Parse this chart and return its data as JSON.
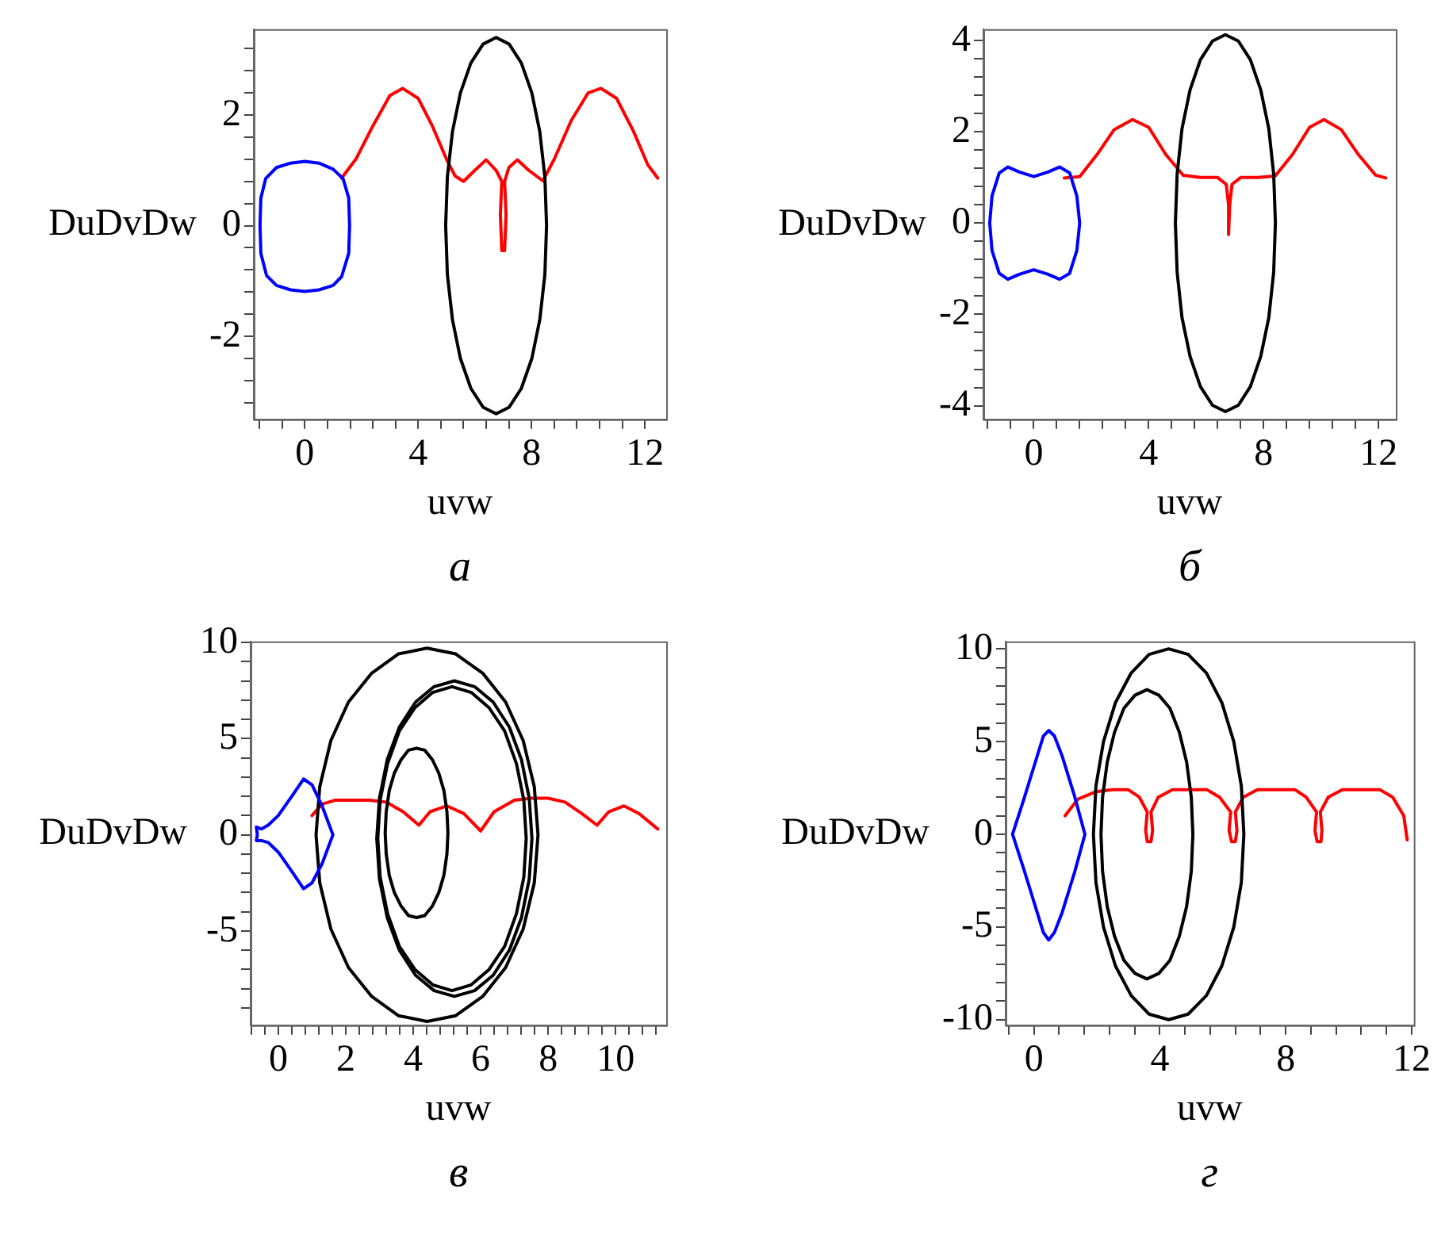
{
  "chart_data": [
    {
      "type": "line",
      "title": "а",
      "xlabel": "uvw",
      "ylabel": "DuDvDw",
      "xlim": [
        -1.8,
        12.75
      ],
      "ylim": [
        -3.5,
        3.55
      ],
      "xticks": [
        {
          "value": -1.6,
          "label": null
        },
        {
          "value": -0.8,
          "label": null
        },
        0,
        {
          "value": 0.8,
          "label": null
        },
        {
          "value": 1.6,
          "label": null
        },
        {
          "value": 2.4,
          "label": null
        },
        {
          "value": 3.2,
          "label": null
        },
        4,
        {
          "value": 4.8,
          "label": null
        },
        {
          "value": 5.6,
          "label": null
        },
        {
          "value": 6.4,
          "label": null
        },
        {
          "value": 7.2,
          "label": null
        },
        8,
        {
          "value": 8.8,
          "label": null
        },
        {
          "value": 9.6,
          "label": null
        },
        {
          "value": 10.4,
          "label": null
        },
        {
          "value": 11.2,
          "label": null
        },
        12
      ],
      "yticks": [
        {
          "value": -3.2,
          "label": null
        },
        {
          "value": -2.8,
          "label": null
        },
        {
          "value": -2.4,
          "label": null
        },
        -2,
        {
          "value": -1.6,
          "label": null
        },
        {
          "value": -1.2,
          "label": null
        },
        {
          "value": -0.8,
          "label": null
        },
        {
          "value": -0.4,
          "label": null
        },
        0,
        {
          "value": 0.4,
          "label": null
        },
        {
          "value": 0.8,
          "label": null
        },
        {
          "value": 1.2,
          "label": null
        },
        {
          "value": 1.6,
          "label": null
        },
        2,
        {
          "value": 2.4,
          "label": null
        },
        {
          "value": 2.8,
          "label": null
        },
        {
          "value": 3.2,
          "label": null
        }
      ],
      "series": [
        {
          "color": "#0000ff",
          "x": [
            -1.58,
            -1.55,
            -1.38,
            -1.0,
            -0.5,
            0,
            0.5,
            1.0,
            1.35,
            1.55,
            1.58,
            1.55,
            1.3,
            1.0,
            0.5,
            0,
            -0.5,
            -1.0,
            -1.35,
            -1.55,
            -1.58,
            -1.55
          ],
          "values": [
            0,
            0.5,
            0.85,
            1.05,
            1.13,
            1.16,
            1.13,
            1.02,
            0.85,
            0.5,
            0,
            -0.5,
            -0.92,
            -1.08,
            -1.16,
            -1.19,
            -1.16,
            -1.08,
            -0.9,
            -0.5,
            0,
            0.5
          ]
        },
        {
          "color": "#000000",
          "x": [
            8.53,
            8.47,
            8.29,
            8.01,
            7.64,
            7.21,
            6.75,
            6.29,
            5.86,
            5.49,
            5.21,
            5.03,
            4.97,
            5.03,
            5.21,
            5.49,
            5.86,
            6.29,
            6.75,
            7.21,
            7.64,
            8.01,
            8.29,
            8.47,
            8.53,
            8.47
          ],
          "values": [
            0,
            0.88,
            1.7,
            2.4,
            2.94,
            3.28,
            3.4,
            3.28,
            2.94,
            2.4,
            1.7,
            0.88,
            0,
            -0.88,
            -1.7,
            -2.4,
            -2.94,
            -3.28,
            -3.4,
            -3.28,
            -2.94,
            -2.4,
            -1.7,
            -0.88,
            0,
            0.88
          ]
        },
        {
          "color": "#ff0000",
          "x": [
            1.3,
            1.8,
            2.4,
            3.0,
            3.45,
            4.0,
            4.5,
            5.0,
            5.3,
            5.6,
            6.0,
            6.4,
            6.75,
            6.95,
            6.9,
            6.95,
            7.05,
            7.1,
            7.05,
            7.2,
            7.5,
            7.9,
            8.4,
            8.8,
            9.4,
            10.0,
            10.45,
            11.0,
            11.6,
            12.1,
            12.45
          ],
          "values": [
            0.86,
            1.2,
            1.8,
            2.35,
            2.48,
            2.3,
            1.8,
            1.2,
            0.9,
            0.8,
            1.0,
            1.19,
            1.0,
            0.8,
            0.2,
            -0.45,
            -0.45,
            0.2,
            0.8,
            1.05,
            1.19,
            1.0,
            0.81,
            1.2,
            1.9,
            2.4,
            2.48,
            2.3,
            1.7,
            1.1,
            0.86
          ]
        }
      ]
    },
    {
      "type": "line",
      "title": "б",
      "xlabel": "uvw",
      "ylabel": "DuDvDw",
      "xlim": [
        -1.75,
        12.6
      ],
      "ylim": [
        -4.3,
        4.25
      ],
      "xticks": [
        {
          "value": -1.6,
          "label": null
        },
        {
          "value": -0.8,
          "label": null
        },
        0,
        {
          "value": 0.8,
          "label": null
        },
        {
          "value": 1.6,
          "label": null
        },
        {
          "value": 2.4,
          "label": null
        },
        {
          "value": 3.2,
          "label": null
        },
        4,
        {
          "value": 4.8,
          "label": null
        },
        {
          "value": 5.6,
          "label": null
        },
        {
          "value": 6.4,
          "label": null
        },
        {
          "value": 7.2,
          "label": null
        },
        8,
        {
          "value": 8.8,
          "label": null
        },
        {
          "value": 9.6,
          "label": null
        },
        {
          "value": 10.4,
          "label": null
        },
        {
          "value": 11.2,
          "label": null
        },
        12
      ],
      "yticks": [
        -4,
        {
          "value": -3.6,
          "label": null
        },
        {
          "value": -3.2,
          "label": null
        },
        {
          "value": -2.8,
          "label": null
        },
        {
          "value": -2.4,
          "label": null
        },
        -2,
        {
          "value": -1.6,
          "label": null
        },
        {
          "value": -1.2,
          "label": null
        },
        {
          "value": -0.8,
          "label": null
        },
        {
          "value": -0.4,
          "label": null
        },
        0,
        {
          "value": 0.4,
          "label": null
        },
        {
          "value": 0.8,
          "label": null
        },
        {
          "value": 1.2,
          "label": null
        },
        {
          "value": 1.6,
          "label": null
        },
        2,
        {
          "value": 2.4,
          "label": null
        },
        {
          "value": 2.8,
          "label": null
        },
        {
          "value": 3.2,
          "label": null
        },
        {
          "value": 3.6,
          "label": null
        },
        4
      ],
      "series": [
        {
          "color": "#0000ff",
          "x": [
            -1.53,
            -1.45,
            -1.2,
            -0.9,
            -0.5,
            0,
            0.5,
            0.9,
            1.25,
            1.5,
            1.6,
            1.5,
            1.25,
            0.9,
            0.5,
            0,
            -0.5,
            -0.9,
            -1.2,
            -1.45,
            -1.53,
            -1.45
          ],
          "values": [
            0,
            0.6,
            1.1,
            1.23,
            1.12,
            1.02,
            1.12,
            1.23,
            1.1,
            0.6,
            0,
            -0.6,
            -1.1,
            -1.23,
            -1.12,
            -1.02,
            -1.12,
            -1.23,
            -1.1,
            -0.6,
            0,
            0.6
          ]
        },
        {
          "color": "#000000",
          "x": [
            8.41,
            8.35,
            8.18,
            7.9,
            7.54,
            7.12,
            6.67,
            6.22,
            5.8,
            5.44,
            5.16,
            4.99,
            4.93,
            4.99,
            5.16,
            5.44,
            5.8,
            6.22,
            6.67,
            7.12,
            7.54,
            7.9,
            8.18,
            8.35,
            8.41,
            8.35
          ],
          "values": [
            0,
            1.07,
            2.07,
            2.92,
            3.58,
            3.99,
            4.13,
            3.99,
            3.58,
            2.92,
            2.07,
            1.07,
            0,
            -1.07,
            -2.07,
            -2.92,
            -3.58,
            -3.99,
            -4.13,
            -3.99,
            -3.58,
            -2.92,
            -2.07,
            -1.07,
            0,
            1.07
          ]
        },
        {
          "color": "#ff0000",
          "x": [
            1.06,
            1.6,
            2.2,
            2.8,
            3.44,
            4.0,
            4.6,
            5.2,
            5.8,
            6.4,
            6.7,
            6.78,
            6.78,
            6.82,
            6.9,
            7.2,
            7.8,
            8.4,
            9.0,
            9.6,
            10.1,
            10.7,
            11.3,
            11.9,
            12.25
          ],
          "values": [
            0.99,
            1.02,
            1.5,
            2.05,
            2.27,
            2.1,
            1.5,
            1.05,
            1.0,
            1.0,
            0.85,
            0.4,
            -0.25,
            0.4,
            0.85,
            1.0,
            1.0,
            1.03,
            1.5,
            2.1,
            2.27,
            2.05,
            1.5,
            1.05,
            0.99
          ]
        }
      ]
    },
    {
      "type": "line",
      "title": "в",
      "xlabel": "uvw",
      "ylabel": "DuDvDw",
      "xlim": [
        -0.82,
        11.5
      ],
      "ylim": [
        -9.9,
        10.05
      ],
      "xticks": [
        {
          "value": -0.8,
          "label": null
        },
        {
          "value": -0.4,
          "label": null
        },
        0,
        {
          "value": 0.4,
          "label": null
        },
        {
          "value": 0.8,
          "label": null
        },
        {
          "value": 1.2,
          "label": null
        },
        {
          "value": 1.6,
          "label": null
        },
        2,
        {
          "value": 2.4,
          "label": null
        },
        {
          "value": 2.8,
          "label": null
        },
        {
          "value": 3.2,
          "label": null
        },
        {
          "value": 3.6,
          "label": null
        },
        4,
        {
          "value": 4.4,
          "label": null
        },
        {
          "value": 4.8,
          "label": null
        },
        {
          "value": 5.2,
          "label": null
        },
        {
          "value": 5.6,
          "label": null
        },
        6,
        {
          "value": 6.4,
          "label": null
        },
        {
          "value": 6.8,
          "label": null
        },
        {
          "value": 7.2,
          "label": null
        },
        {
          "value": 7.6,
          "label": null
        },
        8,
        {
          "value": 8.4,
          "label": null
        },
        {
          "value": 8.8,
          "label": null
        },
        {
          "value": 9.2,
          "label": null
        },
        {
          "value": 9.6,
          "label": null
        },
        10,
        {
          "value": 10.4,
          "label": null
        },
        {
          "value": 10.8,
          "label": null
        },
        {
          "value": 11.2,
          "label": null
        }
      ],
      "yticks": [
        {
          "value": -9,
          "label": null
        },
        {
          "value": -8,
          "label": null
        },
        {
          "value": -7,
          "label": null
        },
        {
          "value": -6,
          "label": null
        },
        -5,
        {
          "value": -4,
          "label": null
        },
        {
          "value": -3,
          "label": null
        },
        {
          "value": -2,
          "label": null
        },
        {
          "value": -1,
          "label": null
        },
        0,
        {
          "value": 1,
          "label": null
        },
        {
          "value": 2,
          "label": null
        },
        {
          "value": 3,
          "label": null
        },
        {
          "value": 4,
          "label": null
        },
        5,
        {
          "value": 6,
          "label": null
        },
        {
          "value": 7,
          "label": null
        },
        {
          "value": 8,
          "label": null
        },
        {
          "value": 9,
          "label": null
        },
        10
      ],
      "series": [
        {
          "color": "#0000ff",
          "x": [
            -0.65,
            -0.62,
            -0.65,
            -0.5,
            -0.3,
            0,
            0.4,
            0.75,
            1.0,
            1.3,
            1.62,
            1.3,
            1.0,
            0.75,
            0.4,
            0,
            -0.3,
            -0.5,
            -0.65,
            -0.62
          ],
          "values": [
            0.4,
            0,
            -0.3,
            -0.3,
            -0.4,
            -0.9,
            -1.9,
            -2.8,
            -2.5,
            -1.5,
            0,
            1.5,
            2.6,
            2.9,
            2.0,
            1.0,
            0.5,
            0.3,
            0.4,
            0
          ]
        },
        {
          "color": "#000000",
          "x": [
            7.7,
            7.59,
            7.26,
            6.74,
            6.06,
            5.26,
            4.41,
            3.56,
            2.77,
            2.08,
            1.56,
            1.23,
            1.12,
            1.23,
            1.56,
            2.08,
            2.77,
            3.56,
            4.41,
            5.26,
            6.06,
            6.74,
            7.26,
            7.59,
            7.7,
            7.59
          ],
          "values": [
            0,
            2.5,
            4.9,
            6.9,
            8.4,
            9.4,
            9.7,
            9.4,
            8.4,
            6.9,
            4.9,
            2.5,
            0,
            -2.5,
            -4.9,
            -6.9,
            -8.4,
            -9.4,
            -9.7,
            -9.4,
            -8.4,
            -6.9,
            -4.9,
            -2.5,
            0,
            2.5
          ]
        },
        {
          "color": "#000000",
          "x": [
            7.52,
            7.44,
            7.21,
            6.85,
            6.37,
            5.82,
            5.22,
            4.62,
            4.07,
            3.59,
            3.23,
            3.0,
            2.92,
            3.0,
            3.23,
            3.59,
            4.07,
            4.62,
            5.22,
            5.82,
            6.37,
            6.85,
            7.21,
            7.44,
            7.52,
            7.44
          ],
          "values": [
            -0.2,
            1.9,
            3.9,
            5.6,
            6.9,
            7.7,
            8.0,
            7.7,
            6.9,
            5.6,
            3.9,
            1.9,
            -0.2,
            -2.3,
            -4.3,
            -6.0,
            -7.3,
            -8.1,
            -8.4,
            -8.1,
            -7.3,
            -6.0,
            -4.3,
            -2.3,
            -0.2,
            1.9
          ]
        },
        {
          "color": "#000000",
          "x": [
            7.35,
            7.28,
            7.06,
            6.71,
            6.25,
            5.72,
            5.15,
            4.58,
            4.05,
            3.59,
            3.24,
            3.02,
            2.95,
            3.02,
            3.24,
            3.59,
            4.05,
            4.58,
            5.15,
            5.72,
            6.25,
            6.71,
            7.06,
            7.28,
            7.35,
            7.28
          ],
          "values": [
            -0.2,
            1.8,
            3.7,
            5.4,
            6.6,
            7.4,
            7.7,
            7.4,
            6.6,
            5.4,
            3.7,
            1.8,
            -0.2,
            -2.2,
            -4.1,
            -5.8,
            -7.0,
            -7.8,
            -8.1,
            -7.8,
            -7.0,
            -5.8,
            -4.1,
            -2.2,
            -0.2,
            1.8
          ]
        },
        {
          "color": "#000000",
          "x": [
            5.03,
            5.0,
            4.91,
            4.76,
            4.57,
            4.34,
            4.1,
            3.86,
            3.64,
            3.44,
            3.29,
            3.2,
            3.17,
            3.2,
            3.29,
            3.44,
            3.64,
            3.86,
            4.1,
            4.34,
            4.57,
            4.76,
            4.91,
            5.0,
            5.03,
            5.0
          ],
          "values": [
            0.1,
            1.2,
            2.3,
            3.2,
            3.9,
            4.4,
            4.5,
            4.4,
            3.9,
            3.2,
            2.3,
            1.2,
            0.1,
            -1.0,
            -2.1,
            -3.0,
            -3.7,
            -4.2,
            -4.3,
            -4.2,
            -3.7,
            -3.0,
            -2.1,
            -1.0,
            0.1,
            1.2
          ]
        },
        {
          "color": "#ff0000",
          "x": [
            1.0,
            1.3,
            1.7,
            2.2,
            2.7,
            3.2,
            3.7,
            4.17,
            4.5,
            5.0,
            5.5,
            6.0,
            6.4,
            7.0,
            7.5,
            8.0,
            8.5,
            9.0,
            9.45,
            9.8,
            10.25,
            10.7,
            11.25
          ],
          "values": [
            1.0,
            1.6,
            1.8,
            1.8,
            1.8,
            1.7,
            1.2,
            0.5,
            1.2,
            1.5,
            1.1,
            0.2,
            1.2,
            1.8,
            1.9,
            1.9,
            1.7,
            1.1,
            0.5,
            1.2,
            1.5,
            1.1,
            0.3
          ]
        }
      ]
    },
    {
      "type": "line",
      "title": "г",
      "xlabel": "uvw",
      "ylabel": "DuDvDw",
      "xlim": [
        -0.9,
        12.07
      ],
      "ylim": [
        -10.3,
        10.4
      ],
      "xticks": [
        {
          "value": -0.8,
          "label": null
        },
        0,
        {
          "value": 0.8,
          "label": null
        },
        {
          "value": 1.6,
          "label": null
        },
        {
          "value": 2.4,
          "label": null
        },
        {
          "value": 3.2,
          "label": null
        },
        4,
        {
          "value": 4.8,
          "label": null
        },
        {
          "value": 5.6,
          "label": null
        },
        {
          "value": 6.4,
          "label": null
        },
        {
          "value": 7.2,
          "label": null
        },
        8,
        {
          "value": 8.8,
          "label": null
        },
        {
          "value": 9.6,
          "label": null
        },
        {
          "value": 10.4,
          "label": null
        },
        {
          "value": 11.2,
          "label": null
        },
        12
      ],
      "yticks": [
        -10,
        {
          "value": -9,
          "label": null
        },
        {
          "value": -8,
          "label": null
        },
        {
          "value": -7,
          "label": null
        },
        {
          "value": -6,
          "label": null
        },
        -5,
        {
          "value": -4,
          "label": null
        },
        {
          "value": -3,
          "label": null
        },
        {
          "value": -2,
          "label": null
        },
        {
          "value": -1,
          "label": null
        },
        0,
        {
          "value": 1,
          "label": null
        },
        {
          "value": 2,
          "label": null
        },
        {
          "value": 3,
          "label": null
        },
        {
          "value": 4,
          "label": null
        },
        5,
        {
          "value": 6,
          "label": null
        },
        {
          "value": 7,
          "label": null
        },
        {
          "value": 8,
          "label": null
        },
        {
          "value": 9,
          "label": null
        },
        10
      ],
      "series": [
        {
          "color": "#0000ff",
          "x": [
            -0.68,
            -0.3,
            0.1,
            0.3,
            0.47,
            0.65,
            0.9,
            1.3,
            1.62,
            1.3,
            0.9,
            0.65,
            0.47,
            0.3,
            0.1,
            -0.3,
            -0.68,
            -0.3
          ],
          "values": [
            0,
            2.0,
            4.2,
            5.3,
            5.6,
            5.3,
            4.2,
            2.0,
            0,
            -2.0,
            -4.2,
            -5.3,
            -5.7,
            -5.3,
            -4.2,
            -2.0,
            0,
            2.0
          ]
        },
        {
          "color": "#000000",
          "x": [
            6.67,
            6.59,
            6.35,
            5.97,
            5.48,
            4.9,
            4.28,
            3.66,
            3.09,
            2.59,
            2.21,
            1.97,
            1.89,
            1.97,
            2.21,
            2.59,
            3.09,
            3.66,
            4.28,
            4.9,
            5.48,
            5.97,
            6.35,
            6.59,
            6.67,
            6.59
          ],
          "values": [
            0,
            2.6,
            5,
            7.1,
            8.7,
            9.7,
            10,
            9.7,
            8.7,
            7.1,
            5,
            2.6,
            0,
            -2.6,
            -5,
            -7.1,
            -8.7,
            -9.7,
            -10,
            -9.7,
            -8.7,
            -7.1,
            -5,
            -2.6,
            0,
            2.6
          ]
        },
        {
          "color": "#000000",
          "x": [
            5.05,
            5.0,
            4.85,
            4.62,
            4.32,
            3.97,
            3.59,
            3.21,
            2.86,
            2.56,
            2.33,
            2.18,
            2.13,
            2.18,
            2.33,
            2.56,
            2.86,
            3.21,
            3.59,
            3.97,
            4.32,
            4.62,
            4.85,
            5.0,
            5.05,
            5.0
          ],
          "values": [
            0,
            2,
            3.9,
            5.5,
            6.8,
            7.5,
            7.8,
            7.5,
            6.8,
            5.5,
            3.9,
            2,
            0,
            -2,
            -3.9,
            -5.5,
            -6.8,
            -7.5,
            -7.8,
            -7.5,
            -6.8,
            -5.5,
            -3.9,
            -2,
            0,
            2
          ]
        },
        {
          "color": "#ff0000",
          "x": [
            0.99,
            1.4,
            1.98,
            2.5,
            3.0,
            3.35,
            3.6,
            3.55,
            3.6,
            3.72,
            3.77,
            3.72,
            3.95,
            4.4,
            5.0,
            5.5,
            5.9,
            6.25,
            6.2,
            6.28,
            6.4,
            6.45,
            6.4,
            6.65,
            7.1,
            7.7,
            8.3,
            8.65,
            8.98,
            8.93,
            9.0,
            9.12,
            9.15,
            9.1,
            9.35,
            9.8,
            10.5,
            11.0,
            11.4,
            11.75,
            11.86
          ],
          "values": [
            1.0,
            1.9,
            2.3,
            2.4,
            2.4,
            2.0,
            1.2,
            0.2,
            -0.4,
            -0.4,
            0.2,
            1.2,
            2.0,
            2.4,
            2.4,
            2.4,
            2.0,
            1.2,
            0.2,
            -0.4,
            -0.4,
            0.2,
            1.2,
            2.0,
            2.4,
            2.4,
            2.4,
            2.0,
            1.2,
            0.2,
            -0.4,
            -0.4,
            0.2,
            1.2,
            2.0,
            2.4,
            2.4,
            2.4,
            2.0,
            1.0,
            -0.3
          ]
        }
      ]
    }
  ]
}
